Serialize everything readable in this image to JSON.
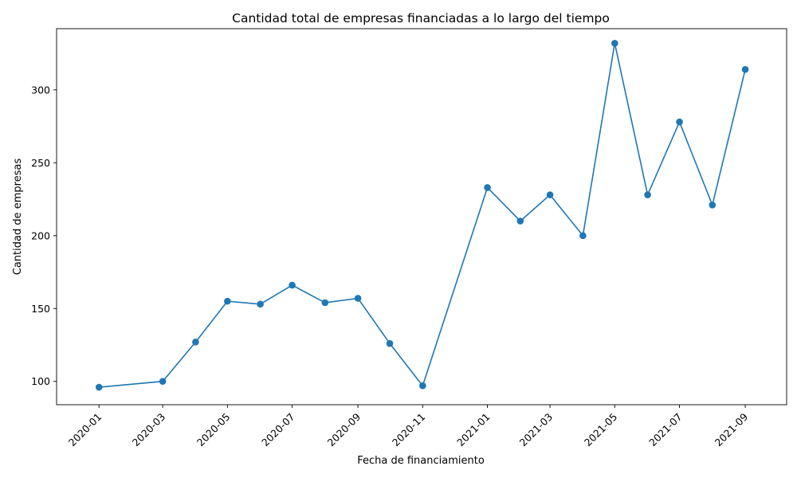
{
  "chart_data": {
    "type": "line",
    "title": "Cantidad total de empresas financiadas a lo largo del tiempo",
    "xlabel": "Fecha de financiamiento",
    "ylabel": "Cantidad de empresas",
    "color": "#1f77b4",
    "marker": "circle",
    "grid": false,
    "x_tick_labels": [
      "2020-01",
      "2020-03",
      "2020-05",
      "2020-07",
      "2020-09",
      "2020-11",
      "2021-01",
      "2021-03",
      "2021-05",
      "2021-07",
      "2021-09"
    ],
    "y_ticks": [
      100,
      150,
      200,
      250,
      300
    ],
    "xlim": [
      "2019-11-22",
      "2021-10-10"
    ],
    "ylim": [
      84,
      342
    ],
    "series": [
      {
        "x": [
          "2020-01",
          "2020-03",
          "2020-04",
          "2020-05",
          "2020-06",
          "2020-07",
          "2020-08",
          "2020-09",
          "2020-10",
          "2020-11",
          "2021-01",
          "2021-02",
          "2021-03",
          "2021-04",
          "2021-05",
          "2021-06",
          "2021-07",
          "2021-08",
          "2021-09"
        ],
        "values": [
          96,
          100,
          127,
          155,
          153,
          166,
          154,
          157,
          126,
          97,
          233,
          210,
          228,
          200,
          332,
          228,
          278,
          221,
          314
        ]
      }
    ]
  }
}
